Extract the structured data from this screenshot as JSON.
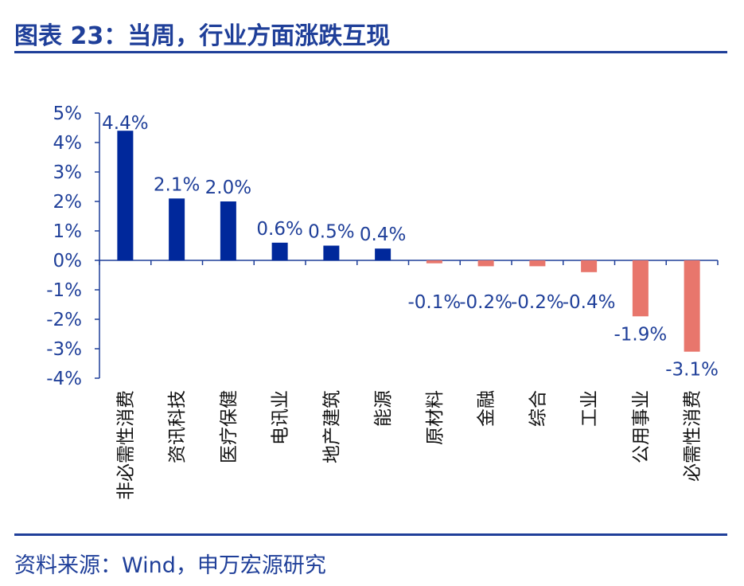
{
  "header": {
    "title": "图表 23：当周，行业方面涨跌互现"
  },
  "footer": {
    "source": "资料来源：Wind，申万宏源研究"
  },
  "colors": {
    "positive": "#00289b",
    "negative": "#e8766c",
    "axis": "#1f3f99",
    "rule": "#1f3f99"
  },
  "chart_data": {
    "type": "bar",
    "title": "",
    "xlabel": "",
    "ylabel": "",
    "ylim": [
      -4,
      5
    ],
    "yticks": [
      5,
      4,
      3,
      2,
      1,
      0,
      -1,
      -2,
      -3,
      -4
    ],
    "ytick_labels": [
      "5%",
      "4%",
      "3%",
      "2%",
      "1%",
      "0%",
      "-1%",
      "-2%",
      "-3%",
      "-4%"
    ],
    "categories": [
      "非必需性消费",
      "资讯科技",
      "医疗保健",
      "电讯业",
      "地产建筑",
      "能源",
      "原材料",
      "金融",
      "综合",
      "工业",
      "公用事业",
      "必需性消费"
    ],
    "values": [
      4.4,
      2.1,
      2.0,
      0.6,
      0.5,
      0.4,
      -0.1,
      -0.2,
      -0.2,
      -0.4,
      -1.9,
      -3.1
    ],
    "data_labels": [
      "4.4%",
      "2.1%",
      "2.0%",
      "0.6%",
      "0.5%",
      "0.4%",
      "-0.1%",
      "-0.2%",
      "-0.2%",
      "-0.4%",
      "-1.9%",
      "-3.1%"
    ],
    "grid": false,
    "legend": "none"
  }
}
